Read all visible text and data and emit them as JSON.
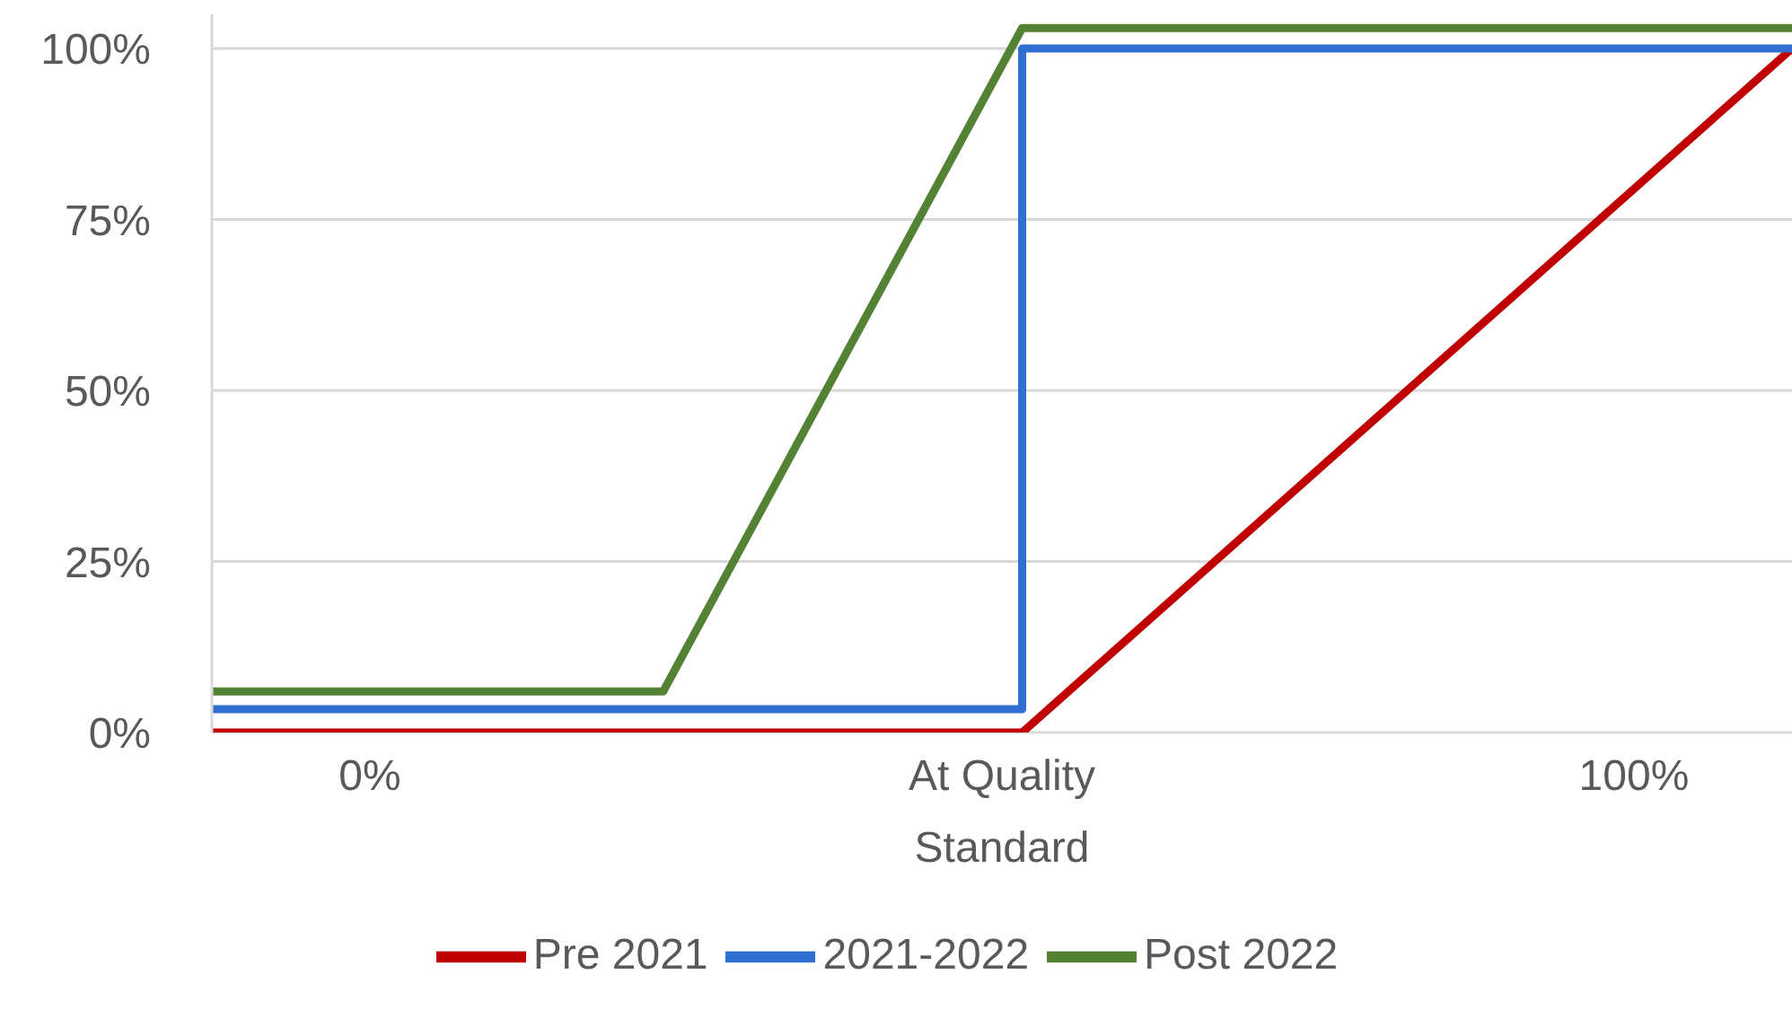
{
  "chart_data": {
    "type": "line",
    "xlim": [
      -12.5,
      112.5
    ],
    "xticks": [
      {
        "value": 0,
        "label": "0%"
      },
      {
        "value": 50,
        "label": "At Quality Standard"
      },
      {
        "value": 100,
        "label": "100%"
      }
    ],
    "ylim": [
      0,
      105
    ],
    "yticks": [
      {
        "value": 0,
        "label": "0%"
      },
      {
        "value": 25,
        "label": "25%"
      },
      {
        "value": 50,
        "label": "50%"
      },
      {
        "value": 75,
        "label": "75%"
      },
      {
        "value": 100,
        "label": "100%"
      }
    ],
    "grid": "y",
    "legend": "bottom",
    "marker": "none",
    "line_style": "solid",
    "series": [
      {
        "name": "Pre 2021",
        "color": "#c00000",
        "x": [
          -12.5,
          51.6,
          112.5
        ],
        "values": [
          0,
          0,
          100
        ]
      },
      {
        "name": "2021-2022",
        "color": "#2e6fd1",
        "x": [
          -12.5,
          51.6,
          51.6,
          112.5
        ],
        "values": [
          3.4,
          3.4,
          100,
          100
        ]
      },
      {
        "name": "Post 2022",
        "color": "#548235",
        "x": [
          -12.5,
          23.2,
          51.6,
          112.5
        ],
        "values": [
          6,
          6,
          103,
          103
        ]
      }
    ]
  }
}
